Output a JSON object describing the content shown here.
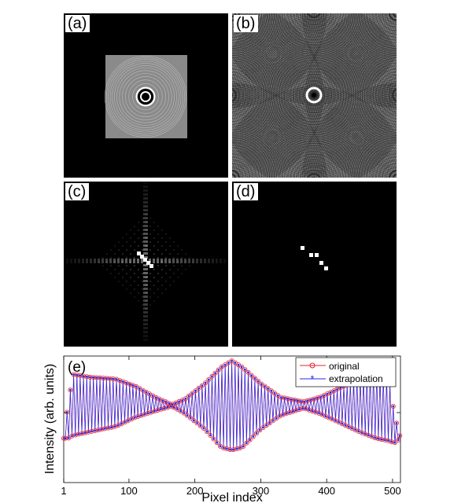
{
  "panels": {
    "a": {
      "label": "(a)"
    },
    "b": {
      "label": "(b)"
    },
    "c": {
      "label": "(c)"
    },
    "d": {
      "label": "(d)"
    }
  },
  "colors": {
    "original": "#e8202a",
    "extrapolation": "#2a2ae8",
    "background": "#000000"
  },
  "chart_data": {
    "type": "line",
    "panel_label": "(e)",
    "xlabel": "Pixel index",
    "ylabel": "Intensity (arb. units)",
    "xlim": [
      1,
      512
    ],
    "xticks": [
      1,
      100,
      200,
      300,
      400,
      500
    ],
    "ylim": [
      0,
      1
    ],
    "yticks_labeled": false,
    "legend": "top-right",
    "series": [
      {
        "name": "original",
        "marker": "open-circle",
        "color": "#e8202a"
      },
      {
        "name": "extrapolation",
        "marker": "asterisk",
        "color": "#2a2ae8"
      }
    ],
    "envelope": {
      "x": [
        1,
        8,
        15,
        40,
        80,
        110,
        140,
        165,
        185,
        215,
        240,
        256,
        272,
        300,
        330,
        365,
        390,
        420,
        450,
        475,
        495,
        503,
        512
      ],
      "upper": [
        0.15,
        0.55,
        0.85,
        0.82,
        0.8,
        0.72,
        0.6,
        0.52,
        0.58,
        0.75,
        0.93,
        1.0,
        0.93,
        0.75,
        0.6,
        0.55,
        0.6,
        0.7,
        0.8,
        0.85,
        0.8,
        0.4,
        0.15
      ],
      "lower": [
        0.15,
        0.15,
        0.18,
        0.22,
        0.28,
        0.38,
        0.45,
        0.5,
        0.42,
        0.25,
        0.05,
        0.02,
        0.05,
        0.25,
        0.4,
        0.48,
        0.42,
        0.32,
        0.22,
        0.15,
        0.12,
        0.1,
        0.15
      ]
    }
  }
}
